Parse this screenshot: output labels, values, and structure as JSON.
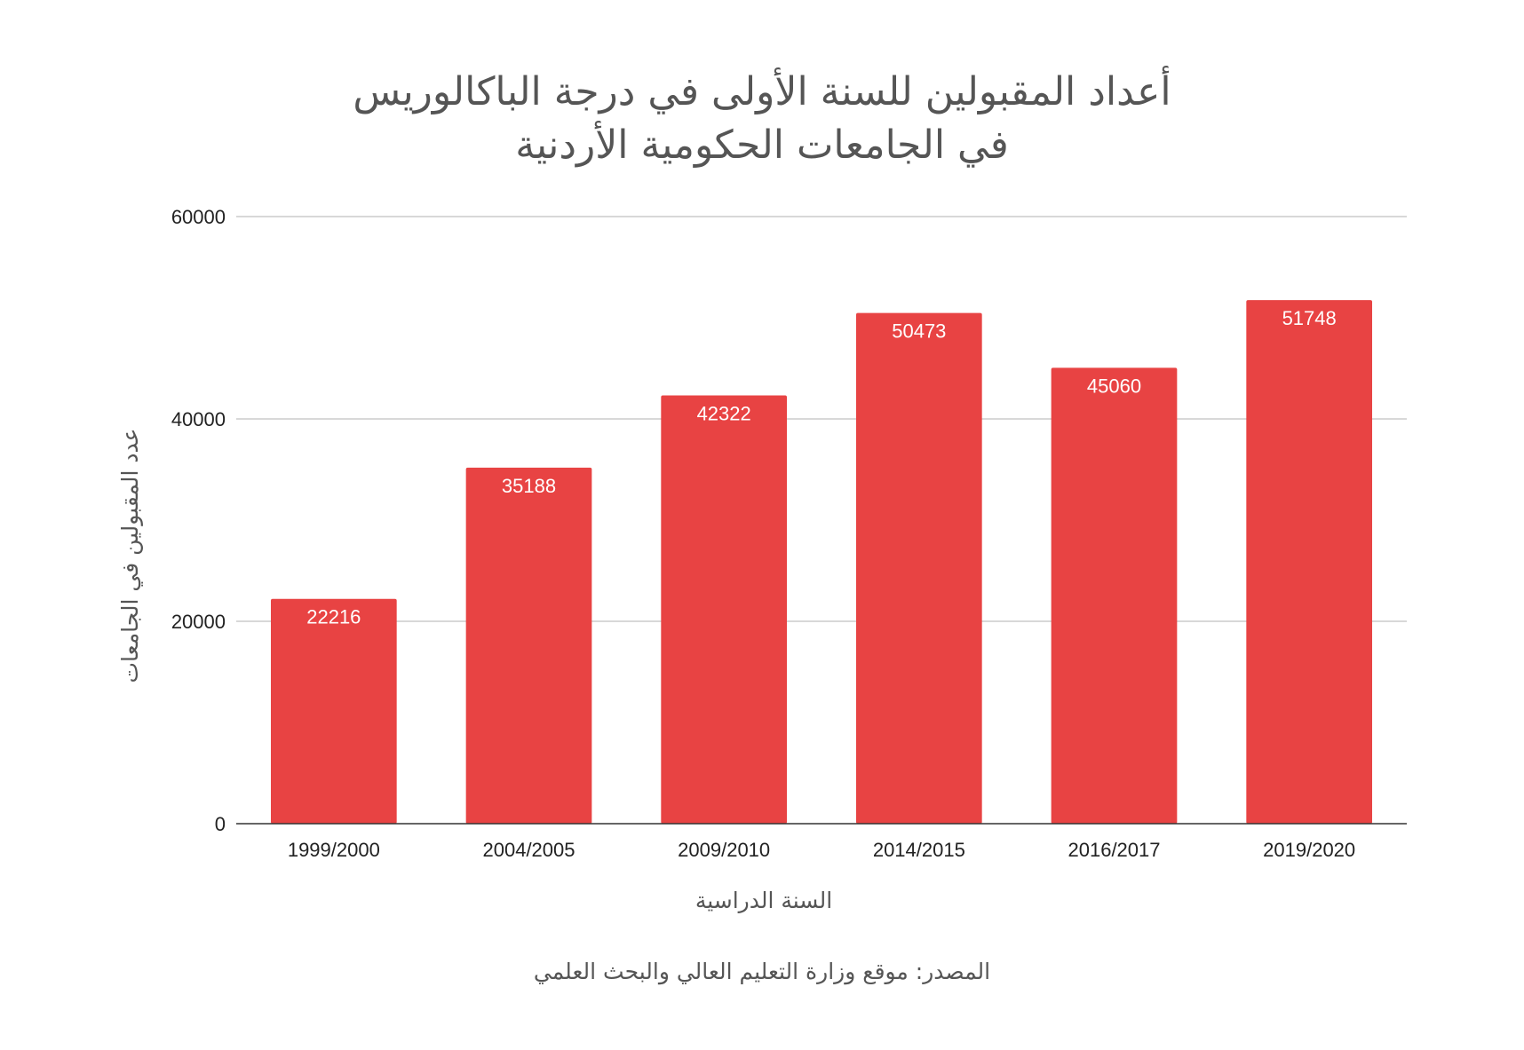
{
  "chart_data": {
    "type": "bar",
    "title_lines": [
      "أعداد المقبولين للسنة الأولى في درجة الباكالوريس",
      "في الجامعات الحكومية الأردنية"
    ],
    "xlabel": "السنة الدراسية",
    "ylabel": "عدد المقبولين في الجامعات",
    "categories": [
      "1999/2000",
      "2004/2005",
      "2009/2010",
      "2014/2015",
      "2016/2017",
      "2019/2020"
    ],
    "values": [
      22216,
      35188,
      42322,
      50473,
      45060,
      51748
    ],
    "ylim": [
      0,
      60000
    ],
    "yticks": [
      0,
      20000,
      40000,
      60000
    ],
    "grid": true,
    "legend": "none",
    "bar_color": "#e84343",
    "source_note": "المصدر: موقع وزارة التعليم العالي والبحث العلمي"
  }
}
